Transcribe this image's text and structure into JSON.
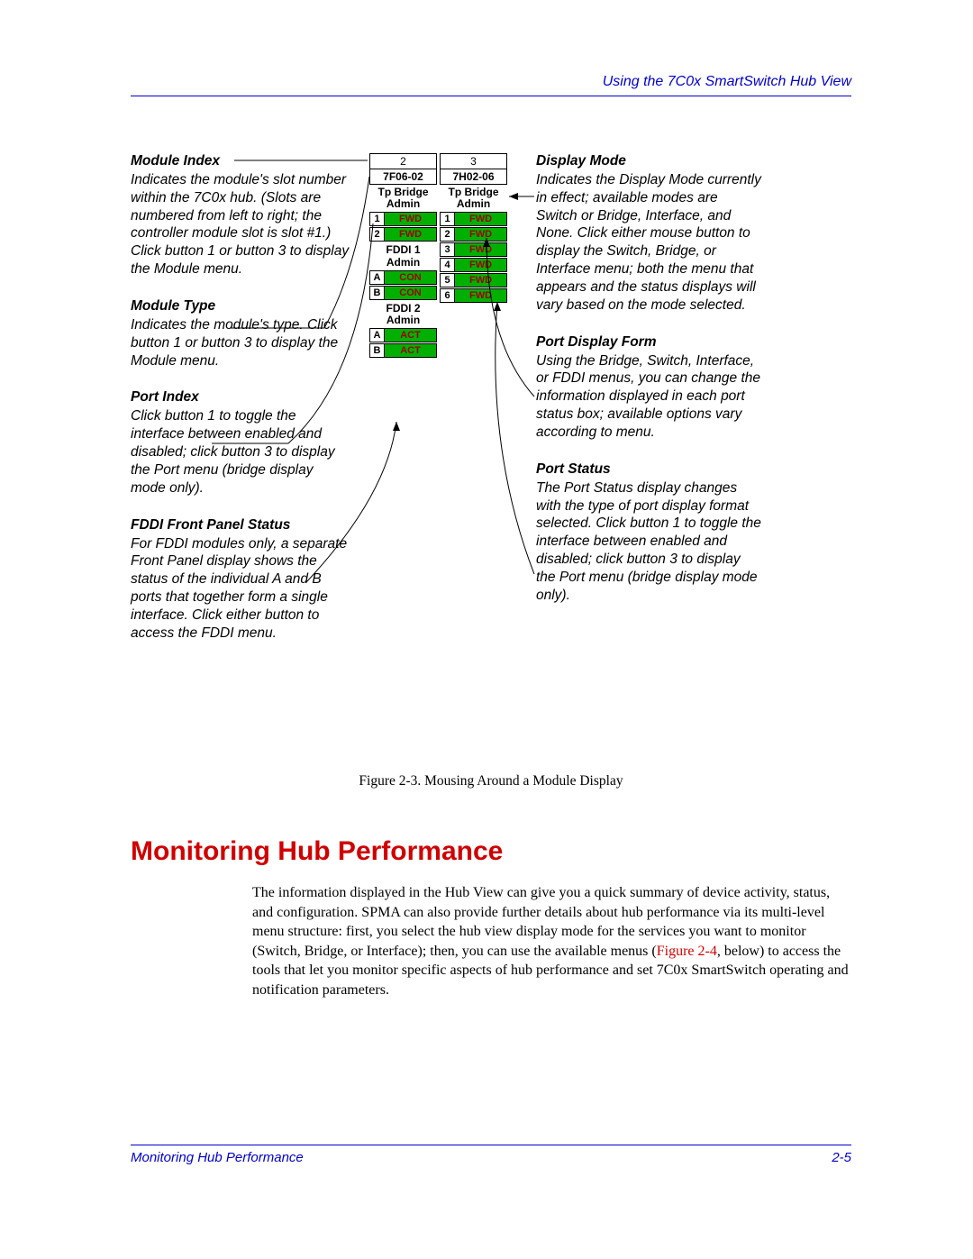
{
  "header": {
    "text": "Using the 7C0x SmartSwitch Hub View"
  },
  "callouts_left": [
    {
      "title": "Module Index",
      "desc": "Indicates the module's slot number within the 7C0x hub. (Slots are numbered from left to right; the controller module slot is slot #1.) Click button 1 or button 3 to display the Module menu."
    },
    {
      "title": "Module Type",
      "desc": "Indicates the module's type. Click button 1 or button 3 to display the Module menu."
    },
    {
      "title": "Port Index",
      "desc": "Click button 1 to toggle the interface between enabled and disabled; click button 3 to display the Port menu (bridge display mode only)."
    },
    {
      "title": "FDDI Front Panel Status",
      "desc": "For FDDI modules only, a separate Front Panel display shows the status of the individual A and B ports that together form a single interface. Click either button to access the FDDI menu."
    }
  ],
  "callouts_right": [
    {
      "title": "Display Mode",
      "desc": "Indicates the Display Mode currently in effect; available modes are Switch or Bridge, Interface, and None. Click either mouse button to display the Switch, Bridge, or Interface menu; both the menu that appears and the status displays will vary based on the mode selected."
    },
    {
      "title": "Port Display Form",
      "desc": "Using the Bridge, Switch, Interface, or FDDI menus, you can change the information displayed in each port status box; available options vary according to menu."
    },
    {
      "title": "Port Status",
      "desc": "The Port Status display changes with the type of port display format selected. Click button 1 to toggle the interface between enabled and disabled; click button 3 to display the Port menu (bridge display mode only)."
    }
  ],
  "modules": [
    {
      "slot": "2",
      "name": "7F06-02",
      "mode_l1": "Tp Bridge",
      "mode_l2": "Admin",
      "ports": [
        {
          "idx": "1",
          "stat": "FWD",
          "color": "#00b000"
        },
        {
          "idx": "2",
          "stat": "FWD",
          "color": "#00b000"
        }
      ],
      "fddi": [
        {
          "label_l1": "FDDI 1",
          "label_l2": "Admin",
          "ports": [
            {
              "idx": "A",
              "stat": "CON",
              "color": "#00b000"
            },
            {
              "idx": "B",
              "stat": "CON",
              "color": "#00b000"
            }
          ]
        },
        {
          "label_l1": "FDDI 2",
          "label_l2": "Admin",
          "ports": [
            {
              "idx": "A",
              "stat": "ACT",
              "color": "#00b000"
            },
            {
              "idx": "B",
              "stat": "ACT",
              "color": "#00b000"
            }
          ]
        }
      ]
    },
    {
      "slot": "3",
      "name": "7H02-06",
      "mode_l1": "Tp Bridge",
      "mode_l2": "Admin",
      "ports": [
        {
          "idx": "1",
          "stat": "FWD",
          "color": "#00b000"
        },
        {
          "idx": "2",
          "stat": "FWD",
          "color": "#00b000"
        },
        {
          "idx": "3",
          "stat": "FWD",
          "color": "#00b000"
        },
        {
          "idx": "4",
          "stat": "FWD",
          "color": "#00b000"
        },
        {
          "idx": "5",
          "stat": "FWD",
          "color": "#00b000"
        },
        {
          "idx": "6",
          "stat": "FWD",
          "color": "#00b000"
        }
      ],
      "fddi": []
    }
  ],
  "figure_caption": "Figure 2-3.  Mousing Around a Module Display",
  "section_heading": "Monitoring Hub Performance",
  "body_paragraph_pre": "The information displayed in the Hub View can give you a quick summary of device activity, status, and configuration. SPMA can also provide further details about hub performance via its multi-level menu structure: first, you select the hub view display mode for the services you want to monitor (Switch, Bridge, or Interface); then, you can use the available menus (",
  "body_xref": "Figure 2-4",
  "body_paragraph_post": ", below) to access the tools that let you monitor specific aspects of hub performance and set 7C0x SmartSwitch operating and notification parameters.",
  "footer": {
    "left": "Monitoring Hub Performance",
    "right": "2-5"
  },
  "colors": {
    "header": "#0000cc",
    "heading": "#d00000",
    "xref": "#d00000",
    "port_fwd": "#00b000"
  }
}
